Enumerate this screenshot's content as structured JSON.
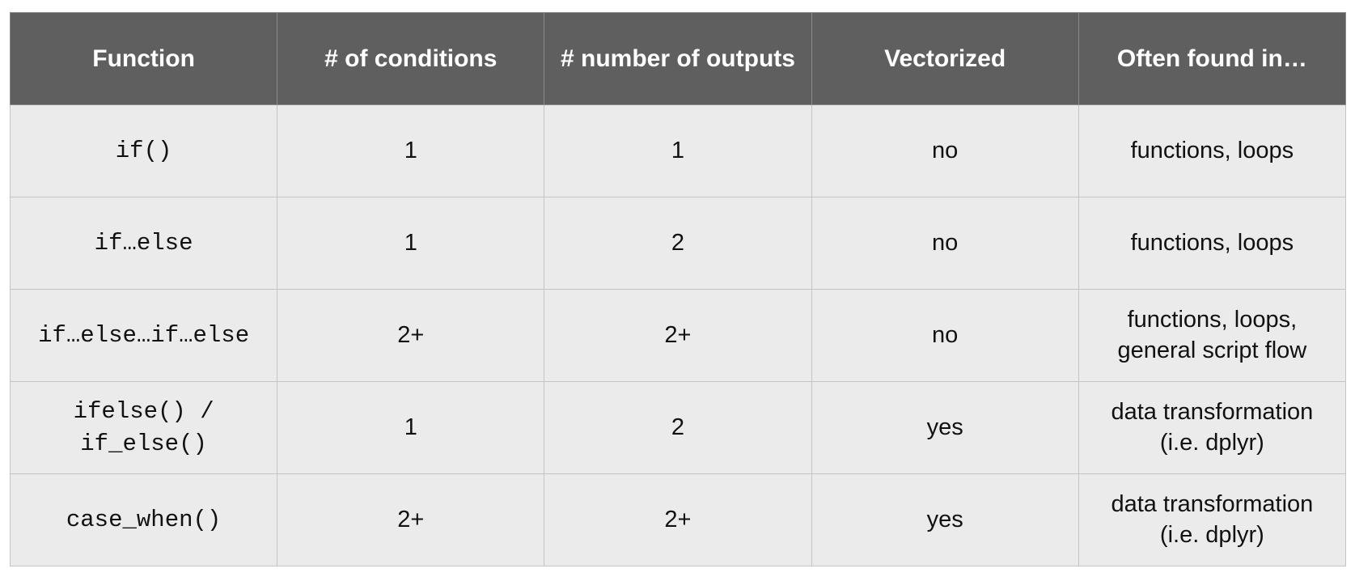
{
  "table": {
    "headers": [
      "Function",
      "# of conditions",
      "# number of outputs",
      "Vectorized",
      "Often found in…"
    ],
    "rows": [
      {
        "function": [
          "if()"
        ],
        "conditions": "1",
        "outputs": "1",
        "vectorized": "no",
        "found_in": [
          "functions, loops"
        ]
      },
      {
        "function": [
          "if…else"
        ],
        "conditions": "1",
        "outputs": "2",
        "vectorized": "no",
        "found_in": [
          "functions, loops"
        ]
      },
      {
        "function": [
          "if…else…if…else"
        ],
        "conditions": "2+",
        "outputs": "2+",
        "vectorized": "no",
        "found_in": [
          "functions, loops,",
          "general script flow"
        ]
      },
      {
        "function": [
          "ifelse() /",
          "if_else()"
        ],
        "conditions": "1",
        "outputs": "2",
        "vectorized": "yes",
        "found_in": [
          "data transformation",
          "(i.e. dplyr)"
        ]
      },
      {
        "function": [
          "case_when()"
        ],
        "conditions": "2+",
        "outputs": "2+",
        "vectorized": "yes",
        "found_in": [
          "data transformation",
          "(i.e. dplyr)"
        ]
      }
    ]
  }
}
